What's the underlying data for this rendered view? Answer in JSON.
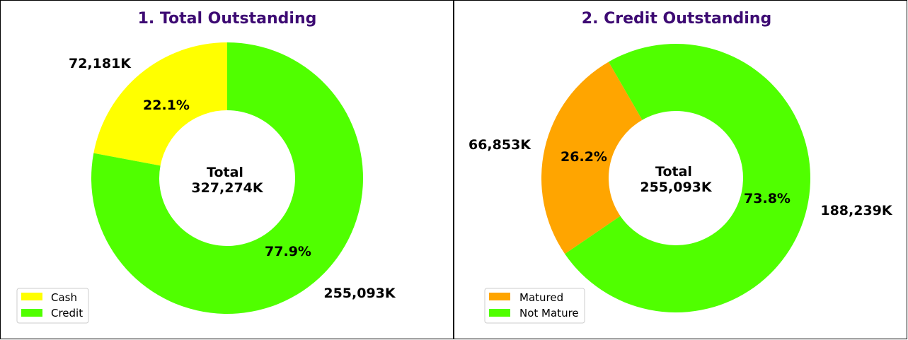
{
  "chart_data": [
    {
      "type": "pie",
      "style": "donut",
      "title": "1. Total Outstanding",
      "center_label": "Total",
      "center_value": "327,274K",
      "categories": [
        "Cash",
        "Credit"
      ],
      "values": [
        72181,
        255093
      ],
      "value_labels": [
        "72,181K",
        "255,093K"
      ],
      "percent_labels": [
        "22.1%",
        "77.9%"
      ],
      "colors": [
        "#ffff00",
        "#50ff00"
      ],
      "legend": {
        "placement": "lower-left",
        "entries": [
          "Cash",
          "Credit"
        ]
      }
    },
    {
      "type": "pie",
      "style": "donut",
      "title": "2. Credit Outstanding",
      "center_label": "Total",
      "center_value": "255,093K",
      "categories": [
        "Matured",
        "Not Mature"
      ],
      "values": [
        66853,
        188239
      ],
      "value_labels": [
        "66,853K",
        "188,239K"
      ],
      "percent_labels": [
        "26.2%",
        "73.8%"
      ],
      "colors": [
        "#ffa500",
        "#50ff00"
      ],
      "legend": {
        "placement": "lower-left",
        "entries": [
          "Matured",
          "Not Mature"
        ]
      }
    }
  ]
}
